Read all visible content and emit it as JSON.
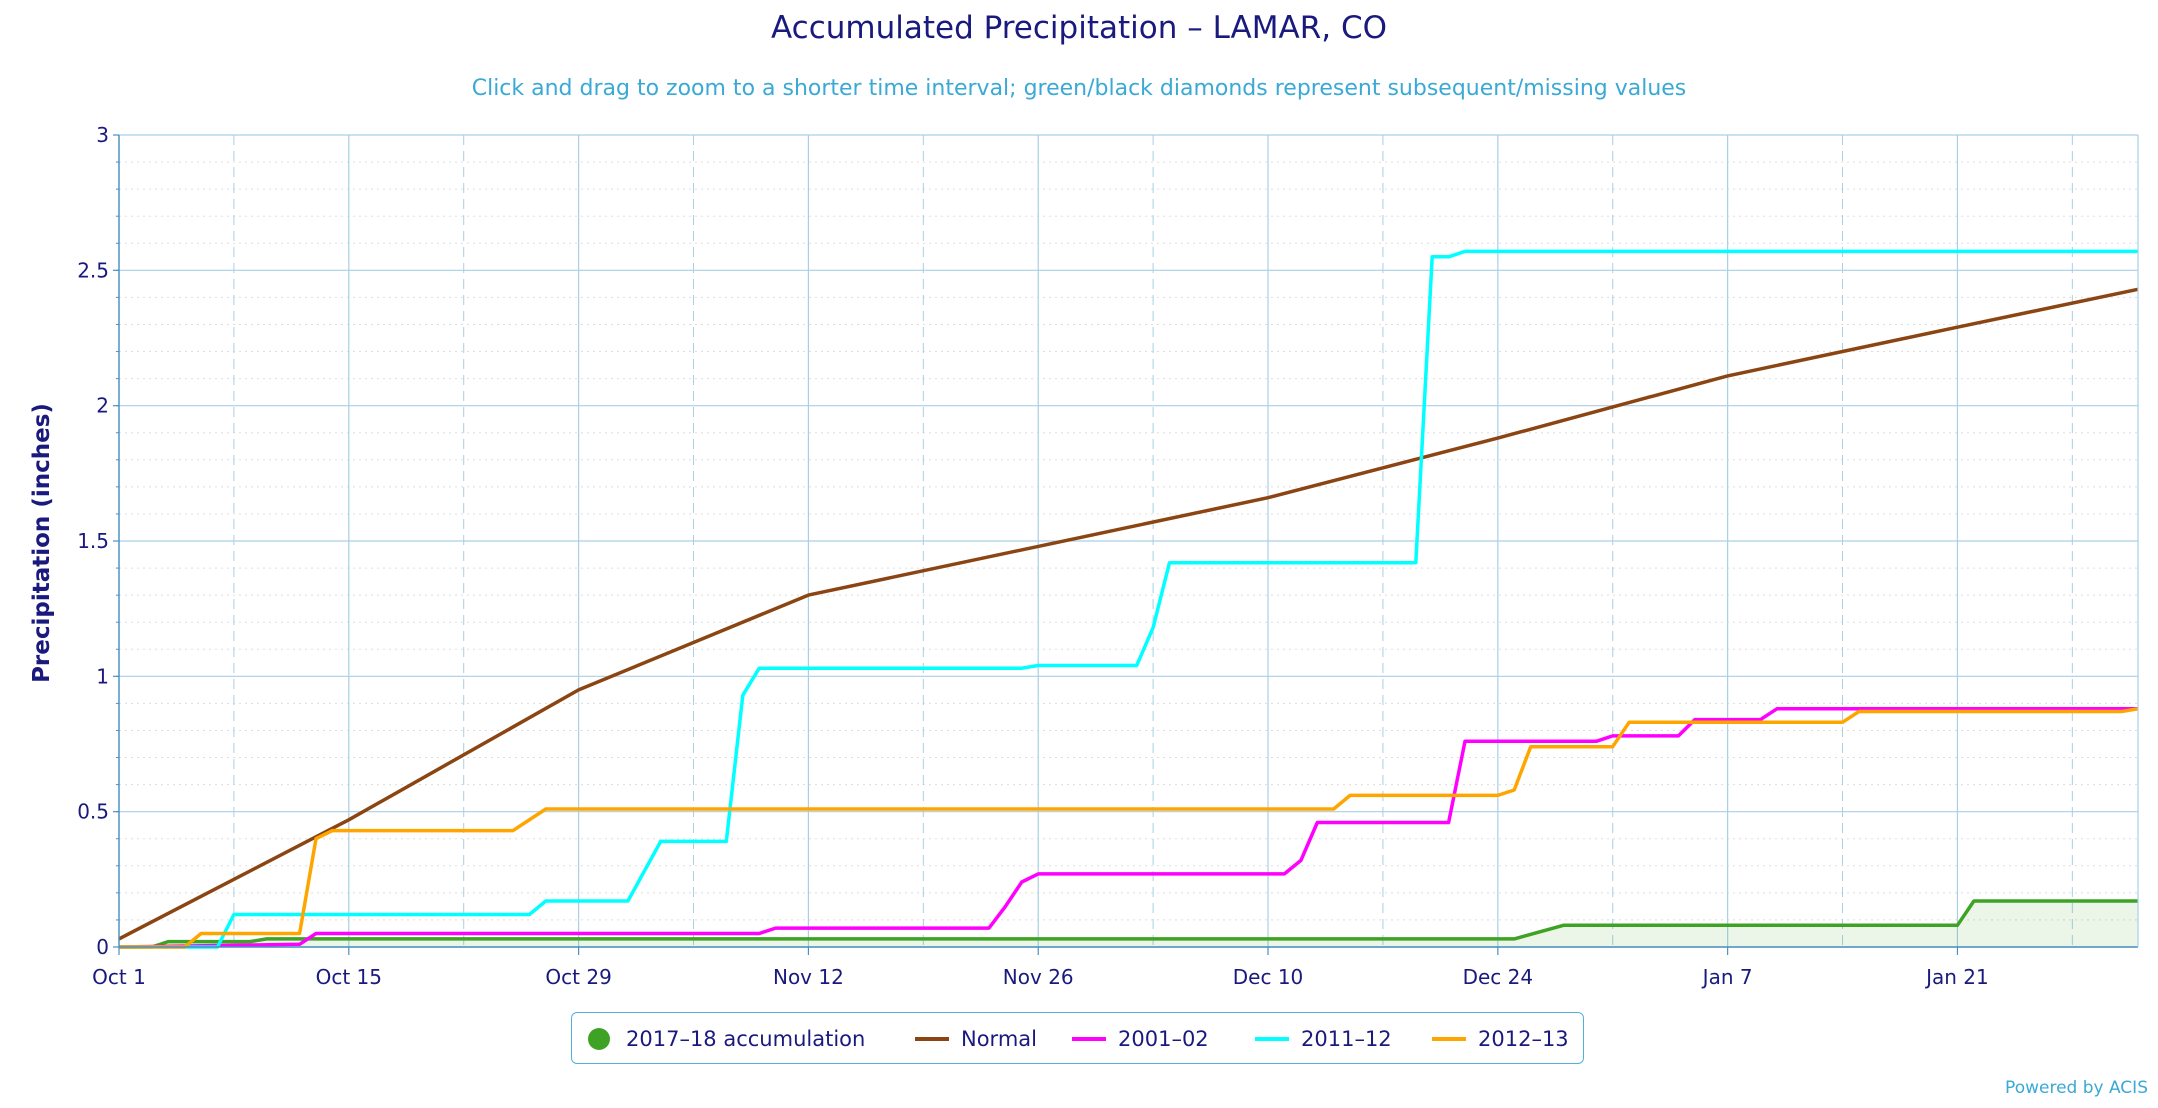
{
  "title": "Accumulated Precipitation – LAMAR, CO",
  "subtitle": "Click and drag to zoom to a shorter time interval; green/black diamonds represent subsequent/missing values",
  "credits": "Powered by ACIS",
  "chart_data": {
    "type": "line",
    "title": "Accumulated Precipitation – LAMAR, CO",
    "ylabel": "Precipitation (inches)",
    "xlabel": "",
    "ylim": [
      0,
      3
    ],
    "y_ticks": [
      "0",
      "0.5",
      "1",
      "1.5",
      "2",
      "2.5",
      "3"
    ],
    "x_range": [
      "Oct 1",
      "Feb 1"
    ],
    "x_tick_labels": [
      "Oct 1",
      "Oct 15",
      "Oct 29",
      "Nov 12",
      "Nov 26",
      "Dec 10",
      "Dec 24",
      "Jan 7",
      "Jan 21"
    ],
    "grid": true,
    "legend_position": "bottom-center",
    "series": [
      {
        "name": "2017–18 accumulation",
        "color": "#3ea324",
        "style": "area",
        "points": [
          [
            "Oct 1",
            0
          ],
          [
            "Oct 3",
            0
          ],
          [
            "Oct 4",
            0.02
          ],
          [
            "Oct 9",
            0.02
          ],
          [
            "Oct 10",
            0.03
          ],
          [
            "Dec 25",
            0.03
          ],
          [
            "Dec 28",
            0.08
          ],
          [
            "Jan 21",
            0.08
          ],
          [
            "Jan 22",
            0.17
          ],
          [
            "Feb 1",
            0.17
          ]
        ]
      },
      {
        "name": "Normal",
        "color": "#8b4513",
        "style": "line",
        "points": [
          [
            "Oct 1",
            0.03
          ],
          [
            "Oct 15",
            0.47
          ],
          [
            "Oct 29",
            0.95
          ],
          [
            "Nov 12",
            1.3
          ],
          [
            "Nov 26",
            1.48
          ],
          [
            "Dec 10",
            1.66
          ],
          [
            "Dec 24",
            1.88
          ],
          [
            "Jan 7",
            2.11
          ],
          [
            "Jan 21",
            2.29
          ],
          [
            "Feb 1",
            2.43
          ]
        ]
      },
      {
        "name": "2001–02",
        "color": "#ff00ff",
        "style": "line",
        "points": [
          [
            "Oct 1",
            0
          ],
          [
            "Oct 12",
            0.01
          ],
          [
            "Oct 13",
            0.05
          ],
          [
            "Nov 9",
            0.05
          ],
          [
            "Nov 10",
            0.07
          ],
          [
            "Nov 23",
            0.07
          ],
          [
            "Nov 24",
            0.15
          ],
          [
            "Nov 25",
            0.24
          ],
          [
            "Nov 26",
            0.27
          ],
          [
            "Dec 11",
            0.27
          ],
          [
            "Dec 12",
            0.32
          ],
          [
            "Dec 13",
            0.46
          ],
          [
            "Dec 21",
            0.46
          ],
          [
            "Dec 22",
            0.76
          ],
          [
            "Dec 30",
            0.76
          ],
          [
            "Dec 31",
            0.78
          ],
          [
            "Jan 4",
            0.78
          ],
          [
            "Jan 5",
            0.84
          ],
          [
            "Jan 9",
            0.84
          ],
          [
            "Jan 10",
            0.88
          ],
          [
            "Feb 1",
            0.88
          ]
        ]
      },
      {
        "name": "2011–12",
        "color": "#00ffff",
        "style": "line",
        "points": [
          [
            "Oct 1",
            0
          ],
          [
            "Oct 7",
            0
          ],
          [
            "Oct 8",
            0.12
          ],
          [
            "Oct 26",
            0.12
          ],
          [
            "Oct 27",
            0.17
          ],
          [
            "Nov 1",
            0.17
          ],
          [
            "Nov 3",
            0.39
          ],
          [
            "Nov 7",
            0.39
          ],
          [
            "Nov 8",
            0.93
          ],
          [
            "Nov 9",
            1.03
          ],
          [
            "Nov 25",
            1.03
          ],
          [
            "Nov 26",
            1.04
          ],
          [
            "Dec 2",
            1.04
          ],
          [
            "Dec 3",
            1.18
          ],
          [
            "Dec 4",
            1.42
          ],
          [
            "Dec 19",
            1.42
          ],
          [
            "Dec 20",
            2.55
          ],
          [
            "Dec 21",
            2.55
          ],
          [
            "Dec 22",
            2.57
          ],
          [
            "Feb 1",
            2.57
          ]
        ]
      },
      {
        "name": "2012–13",
        "color": "#ffa500",
        "style": "line",
        "points": [
          [
            "Oct 1",
            0
          ],
          [
            "Oct 5",
            0
          ],
          [
            "Oct 6",
            0.05
          ],
          [
            "Oct 12",
            0.05
          ],
          [
            "Oct 13",
            0.4
          ],
          [
            "Oct 14",
            0.43
          ],
          [
            "Oct 25",
            0.43
          ],
          [
            "Oct 27",
            0.51
          ],
          [
            "Dec 14",
            0.51
          ],
          [
            "Dec 15",
            0.56
          ],
          [
            "Dec 24",
            0.56
          ],
          [
            "Dec 25",
            0.58
          ],
          [
            "Dec 26",
            0.74
          ],
          [
            "Dec 31",
            0.74
          ],
          [
            "Jan 1",
            0.83
          ],
          [
            "Jan 14",
            0.83
          ],
          [
            "Jan 15",
            0.87
          ],
          [
            "Jan 31",
            0.87
          ],
          [
            "Feb 1",
            0.88
          ]
        ]
      }
    ]
  }
}
